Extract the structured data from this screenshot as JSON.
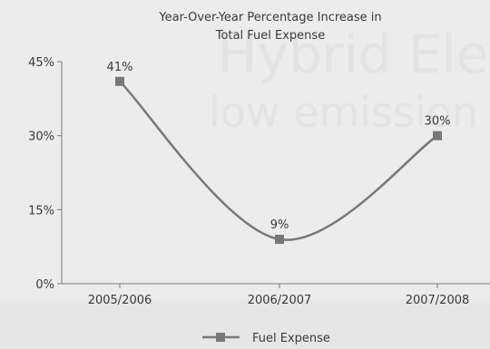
{
  "chart_data": {
    "type": "line",
    "title_lines": [
      "Year-Over-Year Percentage Increase in",
      "Total Fuel Expense"
    ],
    "categories": [
      "2005/2006",
      "2006/2007",
      "2007/2008"
    ],
    "series": [
      {
        "name": "Fuel Expense",
        "values": [
          41,
          9,
          30
        ],
        "labels": [
          "41%",
          "9%",
          "30%"
        ],
        "color": "#787878"
      }
    ],
    "ylim": [
      0,
      45
    ],
    "yticks": [
      0,
      15,
      30,
      45
    ],
    "ytick_labels": [
      "0%",
      "15%",
      "30%",
      "45%"
    ],
    "grid": false,
    "legend": "bottom"
  }
}
